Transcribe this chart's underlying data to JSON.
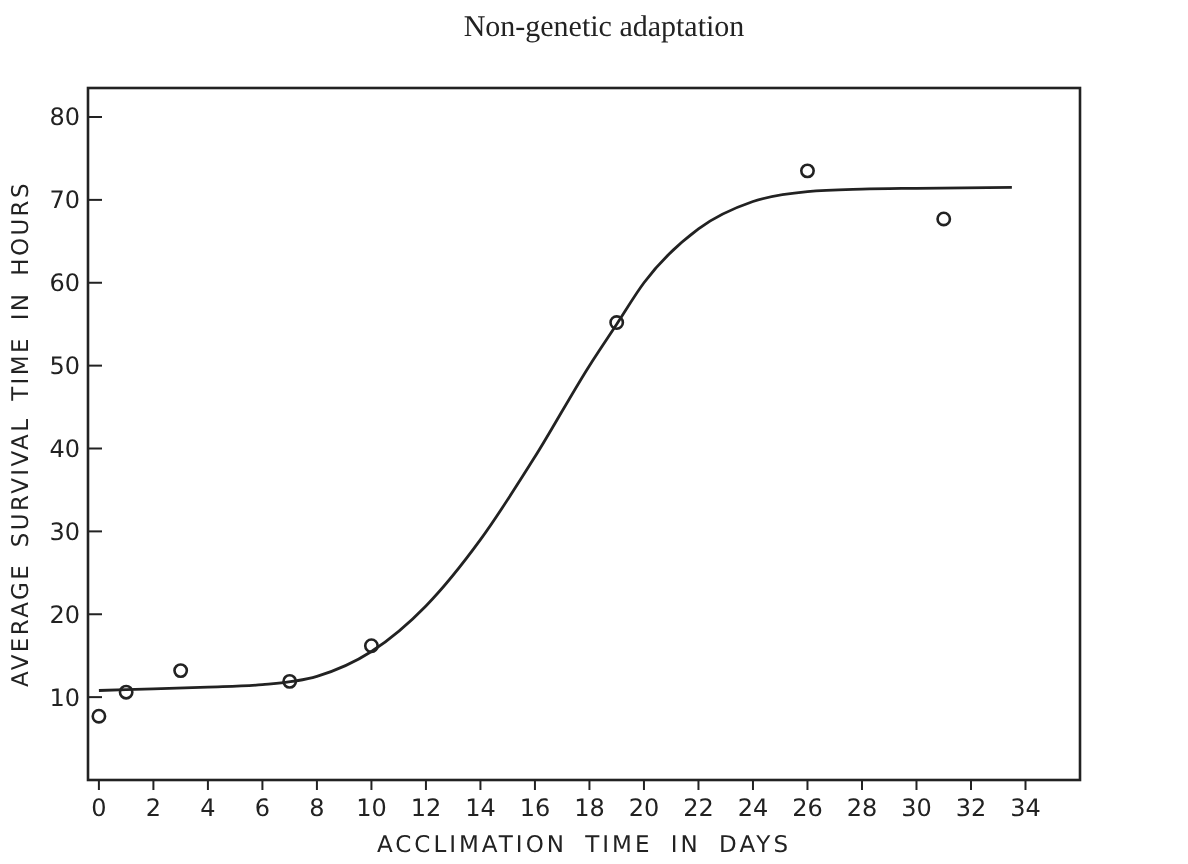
{
  "chart_data": {
    "type": "scatter",
    "title": "Non-genetic adaptation",
    "xlabel": "ACCLIMATION TIME IN DAYS",
    "ylabel": "AVERAGE SURVIVAL TIME IN HOURS",
    "xlim": [
      -0.4,
      36
    ],
    "ylim": [
      0,
      83.5
    ],
    "xticks": [
      0,
      2,
      4,
      6,
      8,
      10,
      12,
      14,
      16,
      18,
      20,
      22,
      24,
      26,
      28,
      30,
      32,
      34
    ],
    "yticks": [
      10,
      20,
      30,
      40,
      50,
      60,
      70,
      80
    ],
    "grid": false,
    "series": [
      {
        "color": "#222222",
        "marker": "circle",
        "x": [
          0,
          1,
          3,
          7,
          10,
          19,
          26,
          31
        ],
        "values": [
          7.7,
          10.6,
          13.2,
          11.9,
          16.2,
          55.2,
          73.5,
          67.7
        ]
      },
      {
        "type": "line",
        "color": "#222222",
        "marker": "none",
        "line_style": "solid",
        "x": [
          0,
          2,
          4,
          6,
          8,
          10,
          12,
          14,
          16,
          18,
          19,
          20,
          22,
          24,
          26,
          28,
          30,
          33.5
        ],
        "values": [
          10.8,
          11,
          11.2,
          11.5,
          12.5,
          15.5,
          21,
          29,
          39,
          50,
          55,
          60,
          66.5,
          69.8,
          71,
          71.3,
          71.4,
          71.5
        ]
      }
    ]
  }
}
